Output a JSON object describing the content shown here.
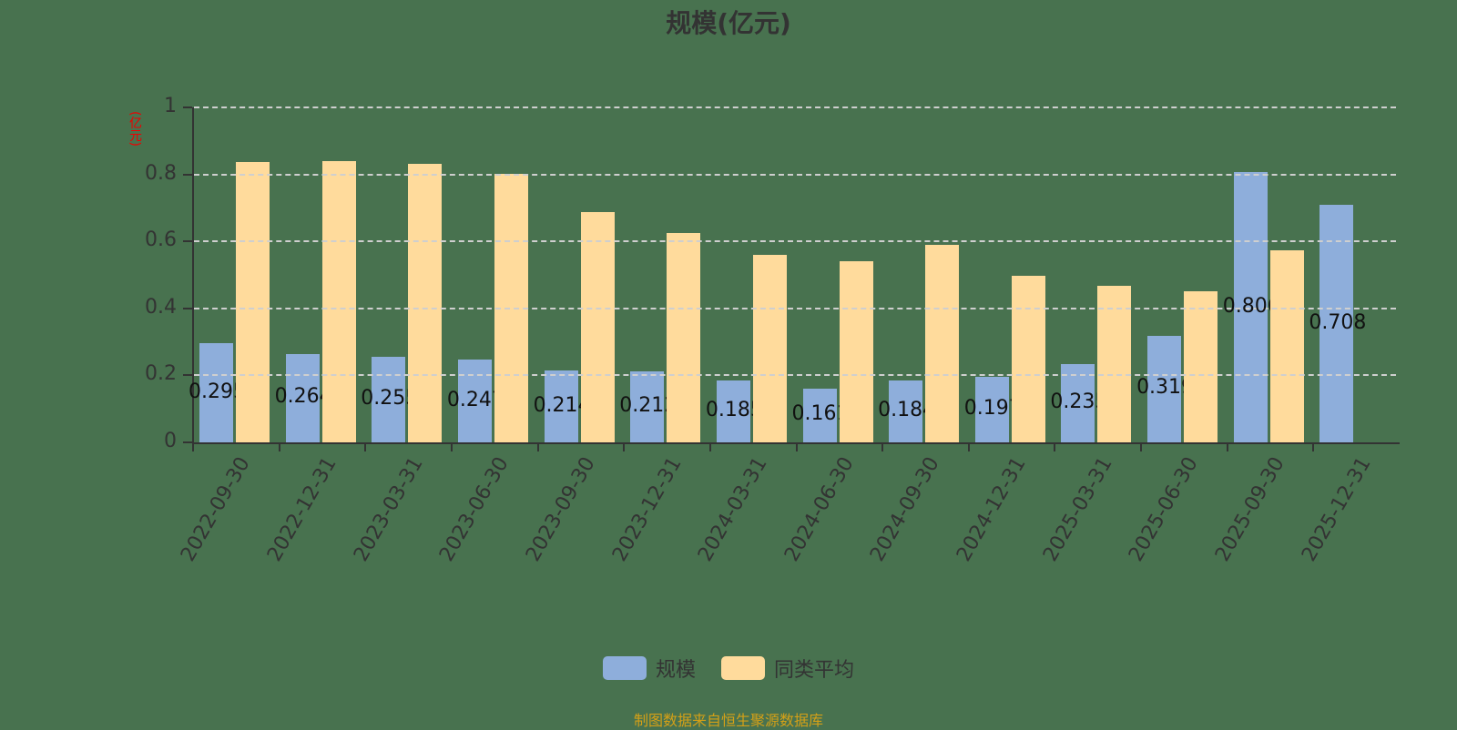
{
  "title": "规模(亿元)",
  "y_axis_label": "(亿元)",
  "legend": [
    {
      "label": "规模",
      "color": "#8eaedb"
    },
    {
      "label": "同类平均",
      "color": "#ffdb9c"
    }
  ],
  "source": "制图数据来自恒生聚源数据库",
  "y_ticks": [
    "0",
    "0.2",
    "0.4",
    "0.6",
    "0.8",
    "1"
  ],
  "chart_data": {
    "type": "bar",
    "title": "规模(亿元)",
    "xlabel": "",
    "ylabel": "(亿元)",
    "ylim": [
      0,
      1
    ],
    "grid": true,
    "legend_position": "bottom",
    "categories": [
      "2022-09-30",
      "2022-12-31",
      "2023-03-31",
      "2023-06-30",
      "2023-09-30",
      "2023-12-31",
      "2024-03-31",
      "2024-06-30",
      "2024-09-30",
      "2024-12-31",
      "2025-03-31",
      "2025-06-30",
      "2025-09-30",
      "2025-12-31"
    ],
    "series": [
      {
        "name": "规模",
        "values": [
          0.295,
          0.264,
          0.255,
          0.247,
          0.214,
          0.212,
          0.185,
          0.161,
          0.184,
          0.197,
          0.235,
          0.319,
          0.806,
          0.708
        ],
        "labels": [
          "0.295",
          "0.264",
          "0.255",
          "0.247",
          "0.214",
          "0.212",
          "0.185",
          "0.161",
          "0.184",
          "0.197",
          "0.235",
          "0.319",
          "0.806",
          "0.708"
        ]
      },
      {
        "name": "同类平均",
        "values": [
          0.837,
          0.84,
          0.832,
          0.802,
          0.688,
          0.625,
          0.56,
          0.541,
          0.59,
          0.497,
          0.467,
          0.451,
          0.573,
          null
        ]
      }
    ]
  }
}
